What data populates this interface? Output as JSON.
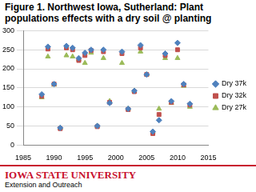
{
  "chart_data": {
    "type": "scatter",
    "title": "Figure 1. Northwest Iowa, Sutherland: Plant populations effects with a dry soil @ planting",
    "x": [
      1988,
      1989,
      1990,
      1991,
      1992,
      1993,
      1994,
      1995,
      1996,
      1997,
      1998,
      1999,
      2001,
      2002,
      2003,
      2004,
      2005,
      2006,
      2007,
      2008,
      2009,
      2010,
      2011,
      2012
    ],
    "series": [
      {
        "name": "Dry 37k",
        "color": "#4f81bd",
        "marker": "diamond",
        "values": [
          133,
          258,
          160,
          45,
          260,
          255,
          228,
          242,
          250,
          50,
          250,
          110,
          245,
          95,
          142,
          262,
          185,
          35,
          65,
          240,
          115,
          268,
          160,
          108
        ]
      },
      {
        "name": "Dry 32k",
        "color": "#c0504d",
        "marker": "square",
        "values": [
          128,
          252,
          160,
          43,
          255,
          250,
          222,
          235,
          248,
          48,
          245,
          112,
          240,
          93,
          140,
          255,
          185,
          30,
          80,
          235,
          112,
          250,
          158,
          105
        ]
      },
      {
        "name": "Dry 27k",
        "color": "#9bbb59",
        "marker": "triangle",
        "values": [
          125,
          232,
          158,
          45,
          235,
          232,
          225,
          215,
          242,
          50,
          228,
          115,
          215,
          95,
          142,
          245,
          185,
          35,
          95,
          228,
          110,
          228,
          155,
          100
        ]
      }
    ],
    "xlim": [
      1985,
      2015
    ],
    "xticks": [
      1985,
      1990,
      1995,
      2000,
      2005,
      2010,
      2015
    ],
    "ylim": [
      0,
      300
    ],
    "yticks": [
      0,
      50,
      100,
      150,
      200,
      250,
      300
    ],
    "grid": true,
    "legend": "right"
  },
  "footer": {
    "name": "IOWA STATE UNIVERSITY",
    "subtitle": "Extension and Outreach"
  }
}
